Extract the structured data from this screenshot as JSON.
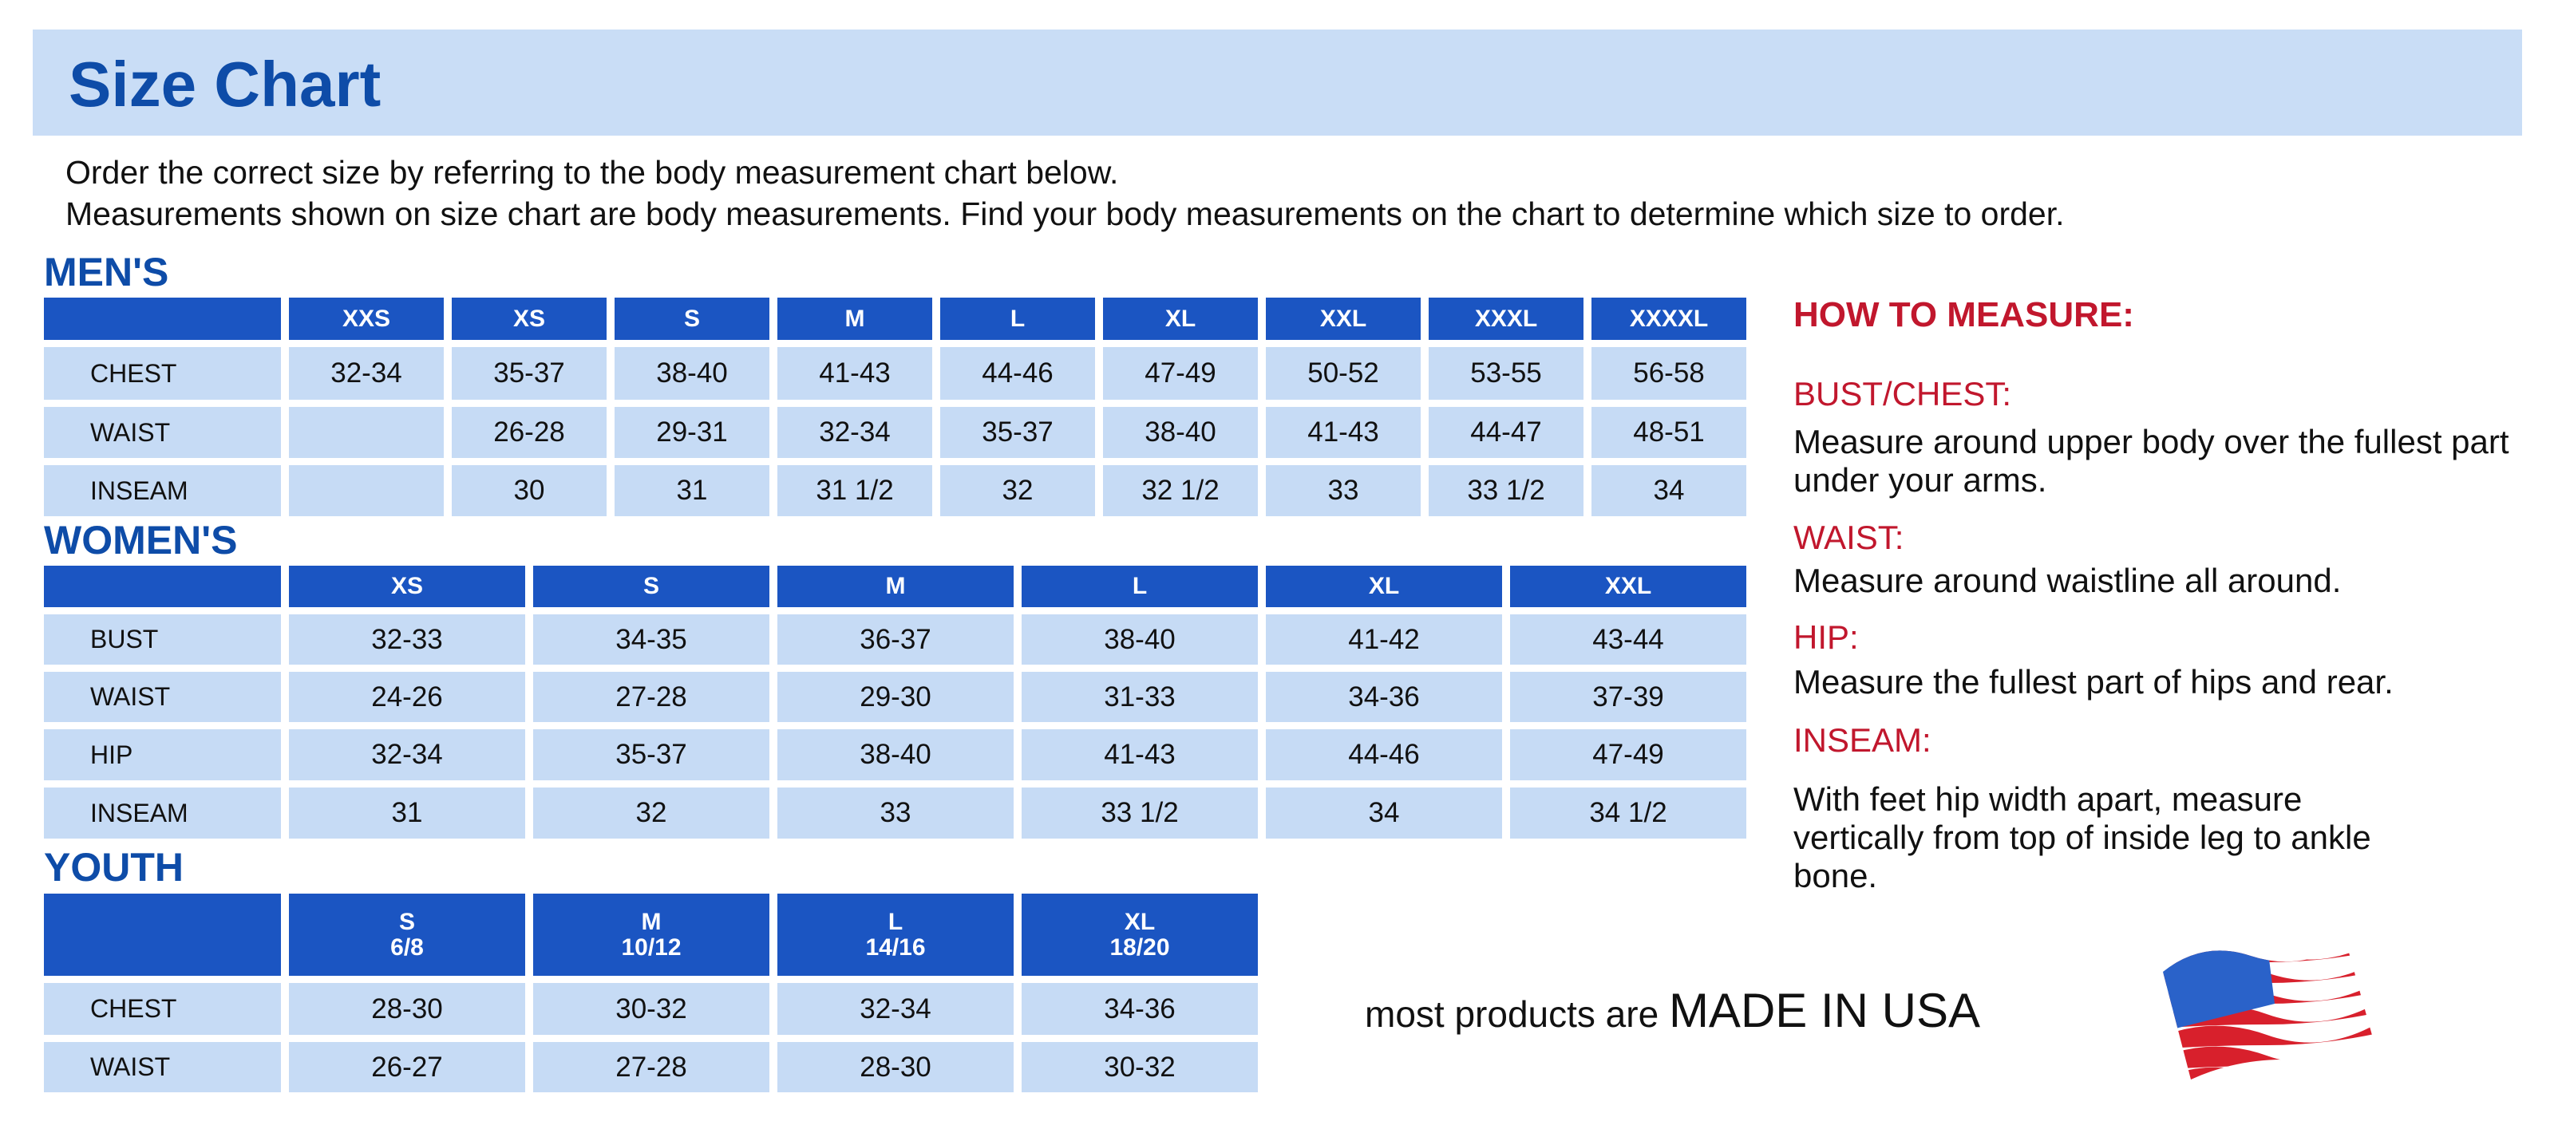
{
  "title": "Size Chart",
  "intro": [
    "Order the correct size by referring to the body measurement chart below.",
    "Measurements shown on size chart are body measurements.  Find your body measurements on the chart to determine which size to order."
  ],
  "mens": {
    "label": "MEN'S",
    "sizes": [
      "XXS",
      "XS",
      "S",
      "M",
      "L",
      "XL",
      "XXL",
      "XXXL",
      "XXXXL"
    ],
    "rows": [
      {
        "name": "CHEST",
        "values": [
          "32-34",
          "35-37",
          "38-40",
          "41-43",
          "44-46",
          "47-49",
          "50-52",
          "53-55",
          "56-58"
        ]
      },
      {
        "name": "WAIST",
        "values": [
          "",
          "26-28",
          "29-31",
          "32-34",
          "35-37",
          "38-40",
          "41-43",
          "44-47",
          "48-51"
        ]
      },
      {
        "name": "INSEAM",
        "values": [
          "",
          "30",
          "31",
          "31 1/2",
          "32",
          "32 1/2",
          "33",
          "33 1/2",
          "34"
        ]
      }
    ]
  },
  "womens": {
    "label": "WOMEN'S",
    "sizes": [
      "XS",
      "S",
      "M",
      "L",
      "XL",
      "XXL"
    ],
    "rows": [
      {
        "name": "BUST",
        "values": [
          "32-33",
          "34-35",
          "36-37",
          "38-40",
          "41-42",
          "43-44"
        ]
      },
      {
        "name": "WAIST",
        "values": [
          "24-26",
          "27-28",
          "29-30",
          "31-33",
          "34-36",
          "37-39"
        ]
      },
      {
        "name": "HIP",
        "values": [
          "32-34",
          "35-37",
          "38-40",
          "41-43",
          "44-46",
          "47-49"
        ]
      },
      {
        "name": "INSEAM",
        "values": [
          "31",
          "32",
          "33",
          "33 1/2",
          "34",
          "34 1/2"
        ]
      }
    ]
  },
  "youth": {
    "label": "YOUTH",
    "sizes": [
      "S\n6/8",
      "M\n10/12",
      "L\n14/16",
      "XL\n18/20"
    ],
    "rows": [
      {
        "name": "CHEST",
        "values": [
          "28-30",
          "30-32",
          "32-34",
          "34-36"
        ]
      },
      {
        "name": "WAIST",
        "values": [
          "26-27",
          "27-28",
          "28-30",
          "30-32"
        ]
      }
    ]
  },
  "how_to_measure": {
    "heading": "HOW TO MEASURE:",
    "items": [
      {
        "label": "BUST/CHEST:",
        "text": "Measure around upper body over the fullest part under your arms."
      },
      {
        "label": "WAIST:",
        "text": "Measure around waistline all around."
      },
      {
        "label": "HIP:",
        "text": "Measure the fullest part of hips and rear."
      },
      {
        "label": "INSEAM:",
        "text": "With feet hip width apart, measure vertically from top of inside leg to ankle bone."
      }
    ]
  },
  "footer": {
    "prefix": "most products are ",
    "emphasis": "MADE IN USA",
    "icon": "us-flag-icon"
  },
  "colors": {
    "header_band": "#c9ddf6",
    "title_blue": "#0e4ca8",
    "table_header": "#1b55c2",
    "cell": "#c6dbf5",
    "accent_red": "#c1172d"
  }
}
